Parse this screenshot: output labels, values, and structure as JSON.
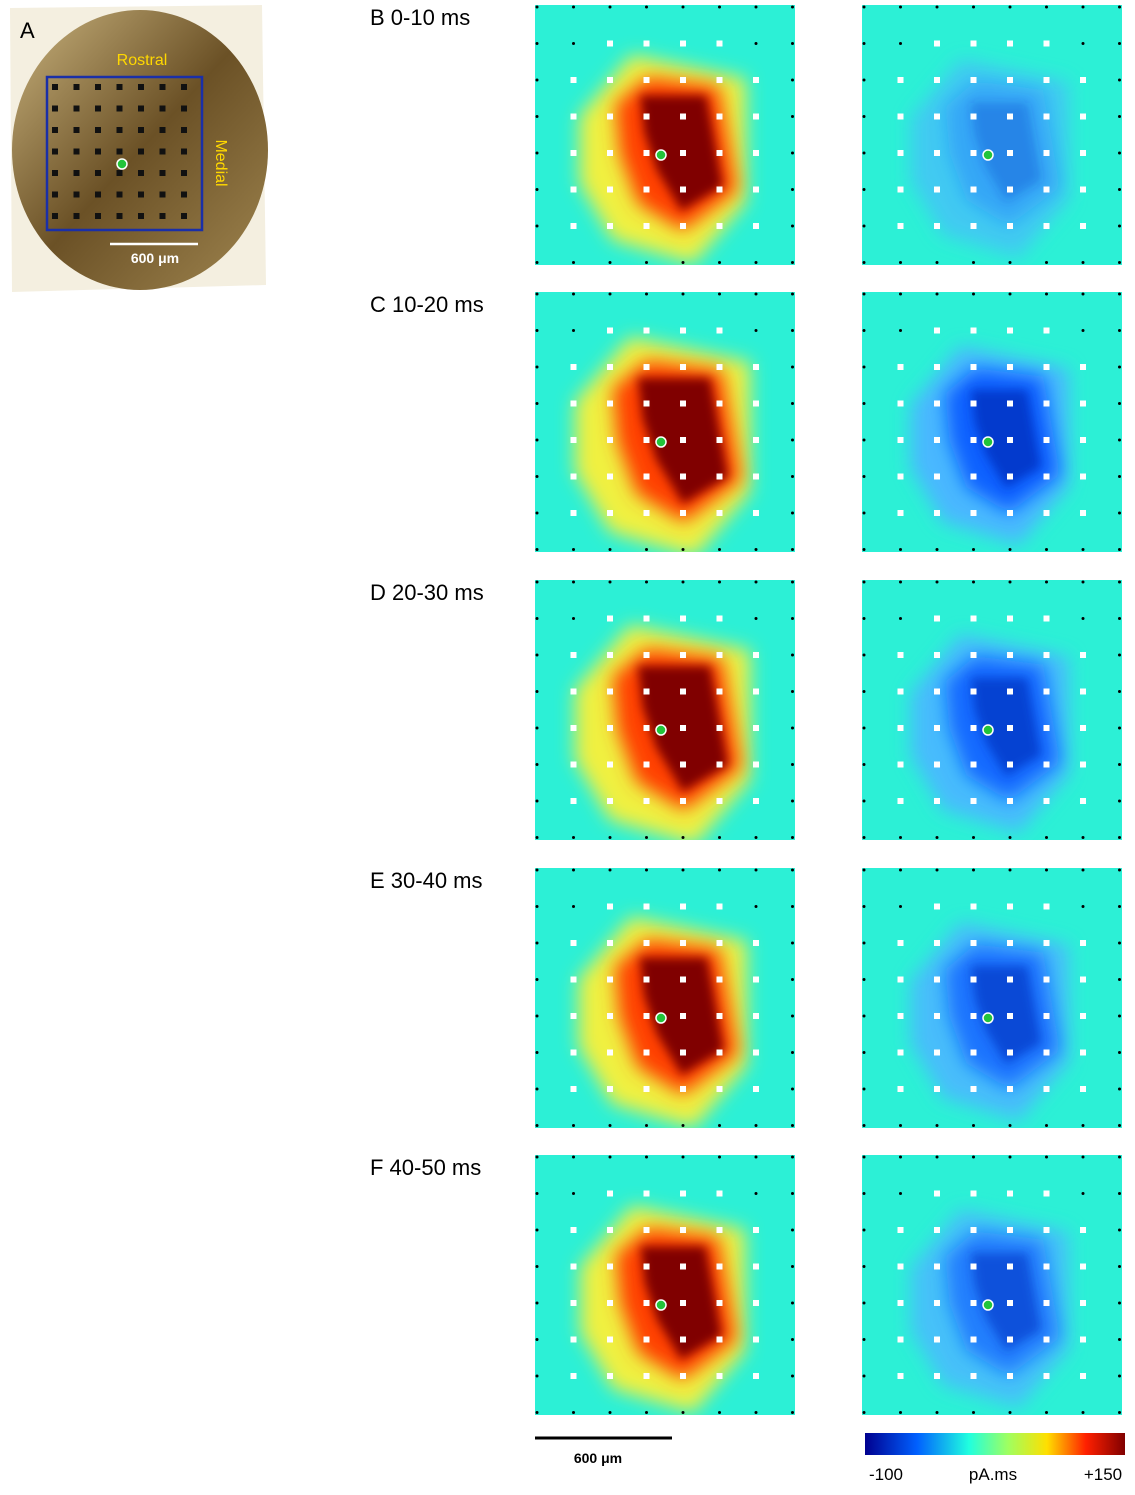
{
  "panel_a": {
    "label": "A",
    "rostral": "Rostral",
    "medial": "Medial",
    "scale": "600 μm"
  },
  "panels": [
    {
      "label": "B  0-10 ms"
    },
    {
      "label": "C 10-20 ms"
    },
    {
      "label": "D  20-30 ms"
    },
    {
      "label": "E 30-40 ms"
    },
    {
      "label": "F  40-50 ms"
    }
  ],
  "scale_bar": "600 μm",
  "colorbar": {
    "min_label": "-100",
    "unit": "pA.ms",
    "max_label": "+150"
  }
}
